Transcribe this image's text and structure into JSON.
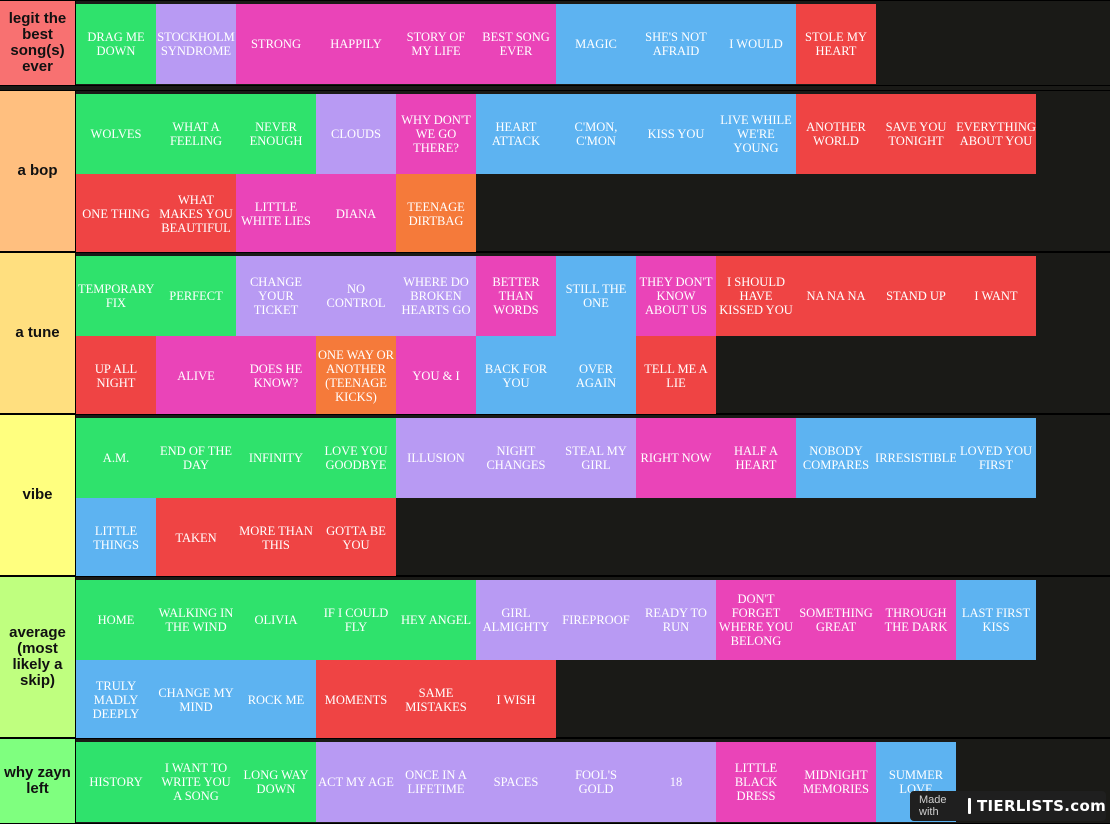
{
  "tiers": [
    {
      "label": "legit the best song(s) ever",
      "label_color": "#f87171",
      "items": [
        {
          "text": "DRAG ME DOWN",
          "color": "green"
        },
        {
          "text": "STOCKHOLM SYNDROME",
          "color": "lilac"
        },
        {
          "text": "STRONG",
          "color": "pink"
        },
        {
          "text": "HAPPILY",
          "color": "pink"
        },
        {
          "text": "STORY OF MY LIFE",
          "color": "pink"
        },
        {
          "text": "BEST SONG EVER",
          "color": "pink"
        },
        {
          "text": "MAGIC",
          "color": "blue"
        },
        {
          "text": "SHE'S NOT AFRAID",
          "color": "blue"
        },
        {
          "text": "I WOULD",
          "color": "blue"
        },
        {
          "text": "STOLE MY HEART",
          "color": "red"
        }
      ]
    },
    {
      "label": "a bop",
      "label_color": "#ffbf7f",
      "items": [
        {
          "text": "WOLVES",
          "color": "green"
        },
        {
          "text": "WHAT A FEELING",
          "color": "green"
        },
        {
          "text": "NEVER ENOUGH",
          "color": "green"
        },
        {
          "text": "CLOUDS",
          "color": "lilac"
        },
        {
          "text": "WHY DON'T WE GO THERE?",
          "color": "pink"
        },
        {
          "text": "HEART ATTACK",
          "color": "blue"
        },
        {
          "text": "C'MON, C'MON",
          "color": "blue"
        },
        {
          "text": "KISS YOU",
          "color": "blue"
        },
        {
          "text": "LIVE WHILE WE'RE YOUNG",
          "color": "blue"
        },
        {
          "text": "ANOTHER WORLD",
          "color": "red"
        },
        {
          "text": "SAVE YOU TONIGHT",
          "color": "red"
        },
        {
          "text": "EVERYTHING ABOUT YOU",
          "color": "red"
        },
        {
          "text": "ONE THING",
          "color": "red"
        },
        {
          "text": "WHAT MAKES YOU BEAUTIFUL",
          "color": "red"
        },
        {
          "text": "LITTLE WHITE LIES",
          "color": "pink"
        },
        {
          "text": "DIANA",
          "color": "pink"
        },
        {
          "text": "TEENAGE DIRTBAG",
          "color": "orange"
        }
      ]
    },
    {
      "label": "a tune",
      "label_color": "#ffdf7f",
      "items": [
        {
          "text": "TEMPORARY FIX",
          "color": "green"
        },
        {
          "text": "PERFECT",
          "color": "green"
        },
        {
          "text": "CHANGE YOUR TICKET",
          "color": "lilac"
        },
        {
          "text": "NO CONTROL",
          "color": "lilac"
        },
        {
          "text": "WHERE DO BROKEN HEARTS GO",
          "color": "lilac"
        },
        {
          "text": "BETTER THAN WORDS",
          "color": "pink"
        },
        {
          "text": "STILL THE ONE",
          "color": "blue"
        },
        {
          "text": "THEY DON'T KNOW ABOUT US",
          "color": "pink"
        },
        {
          "text": "I SHOULD HAVE KISSED YOU",
          "color": "red"
        },
        {
          "text": "NA NA NA",
          "color": "red"
        },
        {
          "text": "STAND UP",
          "color": "red"
        },
        {
          "text": "I WANT",
          "color": "red"
        },
        {
          "text": "UP ALL NIGHT",
          "color": "red"
        },
        {
          "text": "ALIVE",
          "color": "pink"
        },
        {
          "text": "DOES HE KNOW?",
          "color": "pink"
        },
        {
          "text": "ONE WAY OR ANOTHER (TEENAGE KICKS)",
          "color": "orange"
        },
        {
          "text": "YOU & I",
          "color": "pink"
        },
        {
          "text": "BACK FOR YOU",
          "color": "blue"
        },
        {
          "text": "OVER AGAIN",
          "color": "blue"
        },
        {
          "text": "TELL ME A LIE",
          "color": "red"
        }
      ]
    },
    {
      "label": "vibe",
      "label_color": "#ffff7f",
      "items": [
        {
          "text": "A.M.",
          "color": "green"
        },
        {
          "text": "END OF THE DAY",
          "color": "green"
        },
        {
          "text": "INFINITY",
          "color": "green"
        },
        {
          "text": "LOVE YOU GOODBYE",
          "color": "green"
        },
        {
          "text": "ILLUSION",
          "color": "lilac"
        },
        {
          "text": "NIGHT CHANGES",
          "color": "lilac"
        },
        {
          "text": "STEAL MY GIRL",
          "color": "lilac"
        },
        {
          "text": "RIGHT NOW",
          "color": "pink"
        },
        {
          "text": "HALF A HEART",
          "color": "pink"
        },
        {
          "text": "NOBODY COMPARES",
          "color": "blue"
        },
        {
          "text": "IRRESISTIBLE",
          "color": "blue"
        },
        {
          "text": "LOVED YOU FIRST",
          "color": "blue"
        },
        {
          "text": "LITTLE THINGS",
          "color": "blue"
        },
        {
          "text": "TAKEN",
          "color": "red"
        },
        {
          "text": "MORE THAN THIS",
          "color": "red"
        },
        {
          "text": "GOTTA BE YOU",
          "color": "red"
        }
      ]
    },
    {
      "label": "average (most likely a skip)",
      "label_color": "#bfff7f",
      "items": [
        {
          "text": "HOME",
          "color": "green"
        },
        {
          "text": "WALKING IN THE WIND",
          "color": "green"
        },
        {
          "text": "OLIVIA",
          "color": "green"
        },
        {
          "text": "IF I COULD FLY",
          "color": "green"
        },
        {
          "text": "HEY ANGEL",
          "color": "green"
        },
        {
          "text": "GIRL ALMIGHTY",
          "color": "lilac"
        },
        {
          "text": "FIREPROOF",
          "color": "lilac"
        },
        {
          "text": "READY TO RUN",
          "color": "lilac"
        },
        {
          "text": "DON'T FORGET WHERE YOU BELONG",
          "color": "pink"
        },
        {
          "text": "SOMETHING GREAT",
          "color": "pink"
        },
        {
          "text": "THROUGH THE DARK",
          "color": "pink"
        },
        {
          "text": "LAST FIRST KISS",
          "color": "blue"
        },
        {
          "text": "TRULY MADLY DEEPLY",
          "color": "blue"
        },
        {
          "text": "CHANGE MY MIND",
          "color": "blue"
        },
        {
          "text": "ROCK ME",
          "color": "blue"
        },
        {
          "text": "MOMENTS",
          "color": "red"
        },
        {
          "text": "SAME MISTAKES",
          "color": "red"
        },
        {
          "text": "I WISH",
          "color": "red"
        }
      ]
    },
    {
      "label": "why zayn left",
      "label_color": "#7fff7f",
      "items": [
        {
          "text": "HISTORY",
          "color": "green"
        },
        {
          "text": "I WANT TO WRITE YOU A SONG",
          "color": "green"
        },
        {
          "text": "LONG WAY DOWN",
          "color": "green"
        },
        {
          "text": "ACT MY AGE",
          "color": "lilac"
        },
        {
          "text": "ONCE IN A LIFETIME",
          "color": "lilac"
        },
        {
          "text": "SPACES",
          "color": "lilac"
        },
        {
          "text": "FOOL'S GOLD",
          "color": "lilac"
        },
        {
          "text": "18",
          "color": "lilac"
        },
        {
          "text": "LITTLE BLACK DRESS",
          "color": "pink"
        },
        {
          "text": "MIDNIGHT MEMORIES",
          "color": "pink"
        },
        {
          "text": "SUMMER LOVE",
          "color": "blue"
        }
      ]
    }
  ],
  "watermark": {
    "made_with": "Made with",
    "brand": "TIERLISTS.com"
  }
}
